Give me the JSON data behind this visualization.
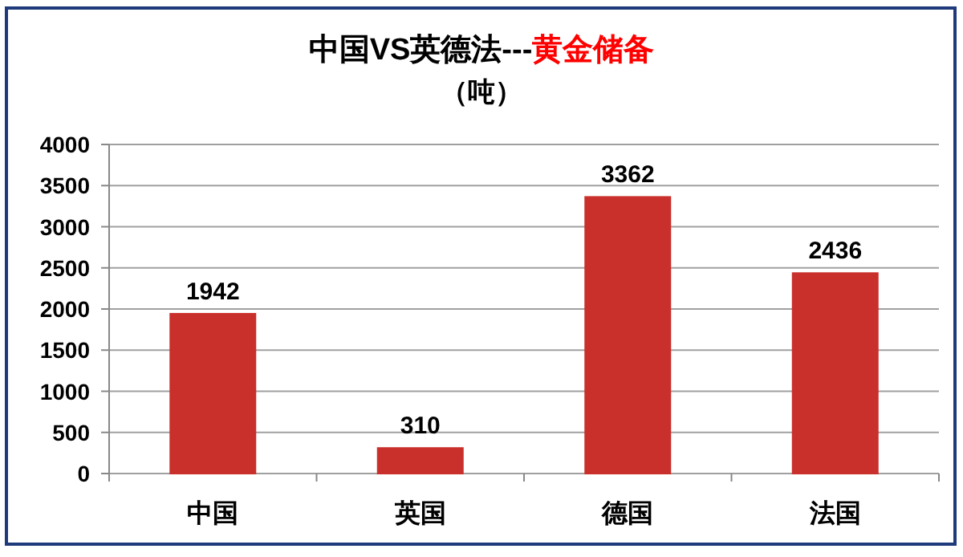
{
  "chart_data": {
    "type": "bar",
    "title": "中国VS英德法---黄金储备",
    "subtitle": "（吨）",
    "categories": [
      "中国",
      "英国",
      "德国",
      "法国"
    ],
    "values": [
      1942,
      310,
      3362,
      2436
    ],
    "color": "#c9302c",
    "ylim": [
      0,
      4000
    ],
    "yticks": [
      0,
      500,
      1000,
      1500,
      2000,
      2500,
      3000,
      3500,
      4000
    ],
    "grid": "y",
    "data_labels": true
  }
}
